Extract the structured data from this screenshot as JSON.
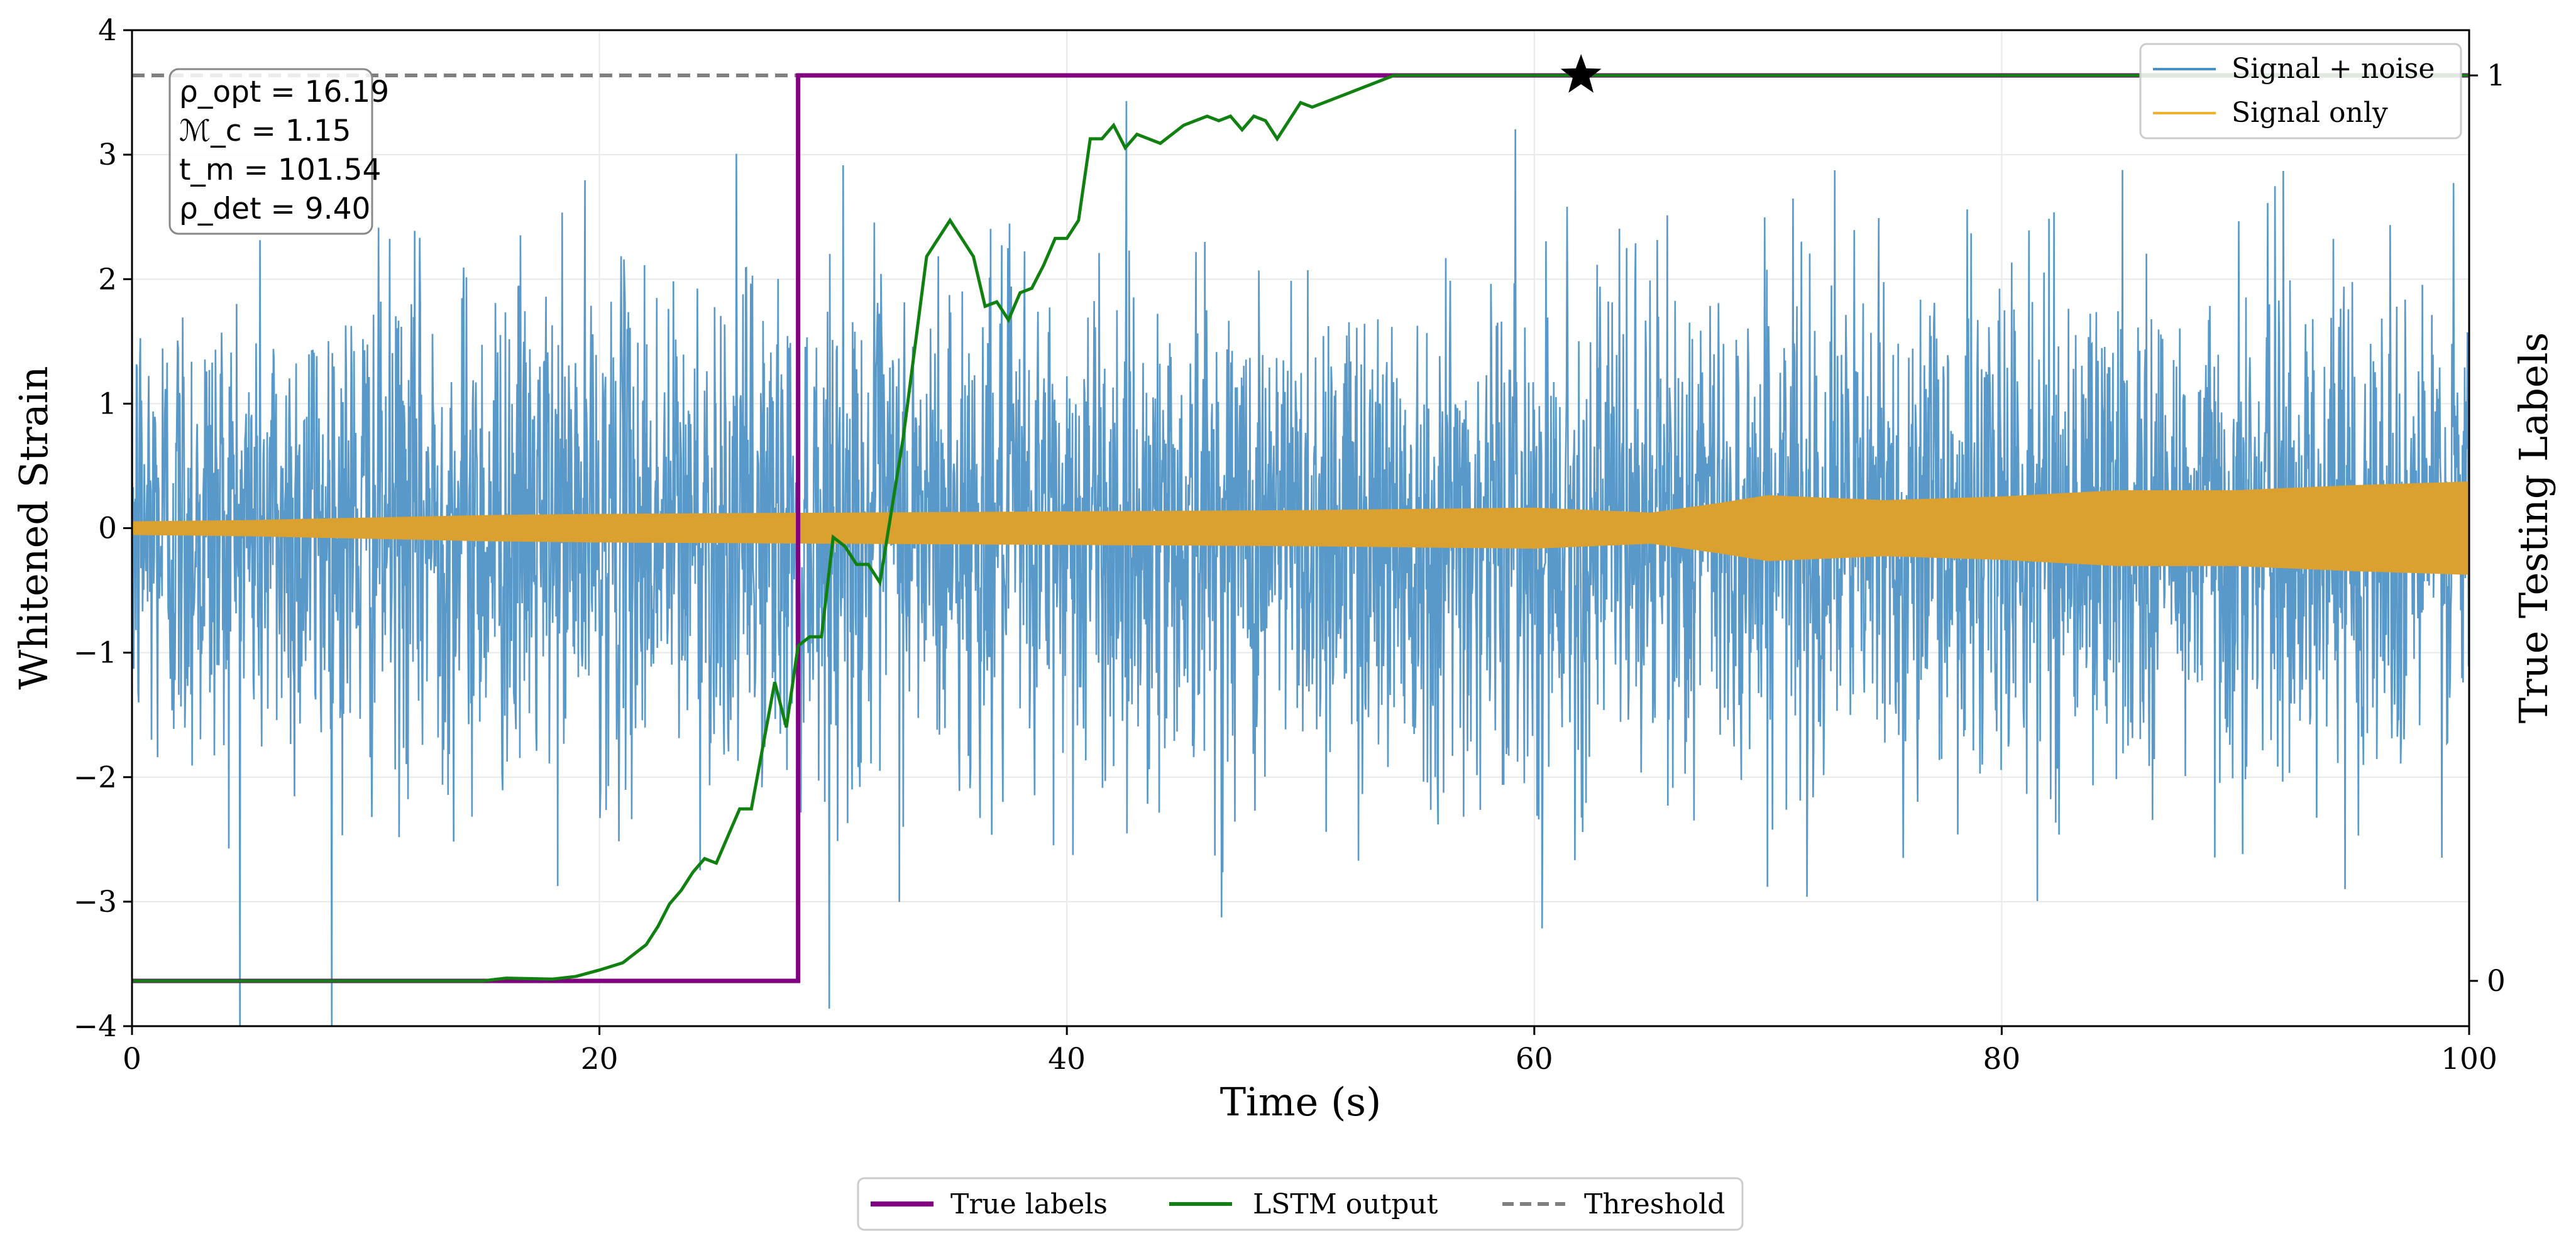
{
  "chart_data": {
    "type": "line",
    "xlabel": "Time (s)",
    "ylabel": "Whitened Strain",
    "ylabel_right": "True Testing Labels",
    "xlim": [
      0,
      100
    ],
    "ylim": [
      -4,
      4
    ],
    "ylim_right": [
      -0.05,
      1.05
    ],
    "xticks": [
      "0",
      "20",
      "40",
      "60",
      "80",
      "100"
    ],
    "yticks": [
      "−4",
      "−3",
      "−2",
      "−1",
      "0",
      "1",
      "2",
      "3",
      "4"
    ],
    "yticks_right": [
      "0",
      "1"
    ],
    "grid": true,
    "annotation_lines": [
      "ρ_opt = 16.19",
      "ℳ_c = 1.15",
      "t_m = 101.54",
      "ρ_det = 9.40"
    ],
    "star_marker": {
      "x": 62,
      "y": 1.0,
      "axis": "right"
    },
    "legend_upper": [
      {
        "label": "Signal + noise",
        "color": "#4a90c4"
      },
      {
        "label": "Signal only",
        "color": "#f0b030"
      }
    ],
    "legend_lower": [
      {
        "label": "True labels",
        "color": "#800080",
        "style": "solid"
      },
      {
        "label": "LSTM output",
        "color": "#008000",
        "style": "solid"
      },
      {
        "label": "Threshold",
        "color": "#808080",
        "style": "dashed"
      }
    ],
    "series": [
      {
        "name": "Signal + noise",
        "axis": "left",
        "kind": "noise",
        "sigma": 1.0,
        "color": "#4a90c4",
        "x_range": [
          0,
          100
        ],
        "note": "Gaussian whitened noise, approx. ±3 peaks"
      },
      {
        "name": "Signal only",
        "axis": "left",
        "kind": "envelope",
        "color": "#daa030",
        "x": [
          0,
          5,
          10,
          15,
          20,
          30,
          40,
          50,
          60,
          65,
          68,
          70,
          75,
          80,
          85,
          90,
          95,
          100
        ],
        "amplitude": [
          0.05,
          0.06,
          0.08,
          0.1,
          0.11,
          0.12,
          0.13,
          0.14,
          0.16,
          0.12,
          0.2,
          0.26,
          0.22,
          0.25,
          0.3,
          0.3,
          0.34,
          0.37
        ]
      },
      {
        "name": "True labels",
        "axis": "right",
        "color": "#800080",
        "x": [
          0,
          28.5,
          28.5,
          100
        ],
        "y": [
          0,
          0,
          1,
          1
        ]
      },
      {
        "name": "LSTM output",
        "axis": "right",
        "color": "#108010",
        "x": [
          0,
          15,
          16,
          18,
          19,
          20,
          21,
          22,
          22.5,
          23,
          23.5,
          24,
          24.5,
          25,
          25.5,
          26,
          26.5,
          27,
          27.5,
          28,
          28.5,
          29,
          29.5,
          30,
          30.5,
          31,
          31.5,
          32,
          33,
          34,
          35,
          36,
          36.5,
          37,
          37.5,
          38,
          38.5,
          39,
          39.5,
          40,
          40.5,
          41,
          41.5,
          42,
          42.5,
          43,
          43.5,
          44,
          44.5,
          45,
          45.5,
          46,
          46.5,
          47,
          47.5,
          48,
          48.5,
          49,
          49.5,
          50,
          50.5,
          51,
          52,
          53,
          54,
          55,
          56,
          57,
          60,
          100
        ],
        "y": [
          0,
          0.0,
          0.003,
          0.002,
          0.005,
          0.012,
          0.02,
          0.04,
          0.06,
          0.085,
          0.1,
          0.12,
          0.135,
          0.13,
          0.16,
          0.19,
          0.19,
          0.26,
          0.33,
          0.28,
          0.37,
          0.38,
          0.38,
          0.49,
          0.48,
          0.46,
          0.46,
          0.44,
          0.6,
          0.8,
          0.84,
          0.8,
          0.745,
          0.75,
          0.73,
          0.76,
          0.765,
          0.79,
          0.82,
          0.82,
          0.84,
          0.93,
          0.93,
          0.945,
          0.92,
          0.935,
          0.93,
          0.925,
          0.935,
          0.945,
          0.95,
          0.955,
          0.95,
          0.955,
          0.94,
          0.955,
          0.95,
          0.93,
          0.95,
          0.97,
          0.965,
          0.97,
          0.98,
          0.99,
          1.0,
          1.0,
          1.0,
          1.0,
          1.0,
          1.0
        ]
      },
      {
        "name": "Threshold",
        "axis": "right",
        "color": "#808080",
        "x": [
          0,
          100
        ],
        "y": [
          1.0,
          1.0
        ]
      }
    ]
  }
}
